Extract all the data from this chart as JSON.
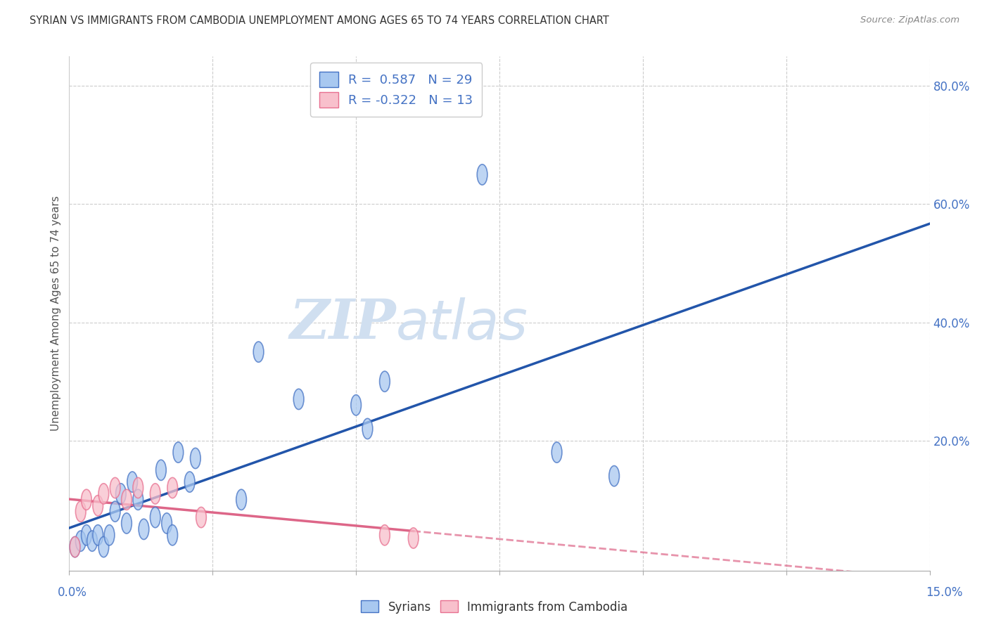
{
  "title": "SYRIAN VS IMMIGRANTS FROM CAMBODIA UNEMPLOYMENT AMONG AGES 65 TO 74 YEARS CORRELATION CHART",
  "source": "Source: ZipAtlas.com",
  "ylabel": "Unemployment Among Ages 65 to 74 years",
  "ylabel_right_ticks": [
    "20.0%",
    "40.0%",
    "60.0%",
    "80.0%"
  ],
  "ylabel_right_vals": [
    0.2,
    0.4,
    0.6,
    0.8
  ],
  "legend_syrian_R": "0.587",
  "legend_syrian_N": "29",
  "legend_cambodia_R": "-0.322",
  "legend_cambodia_N": "13",
  "syrian_color": "#A8C8F0",
  "syrian_edge_color": "#4472C4",
  "cambodia_color": "#F8C0CC",
  "cambodia_edge_color": "#E87090",
  "syrian_line_color": "#2255AA",
  "cambodia_line_color": "#DD6688",
  "watermark_color": "#D0DFF0",
  "xlim": [
    0.0,
    0.15
  ],
  "ylim": [
    -0.02,
    0.85
  ],
  "xtick_vals": [
    0.0,
    0.025,
    0.05,
    0.075,
    0.1,
    0.125,
    0.15
  ],
  "syrian_points_x": [
    0.001,
    0.002,
    0.003,
    0.004,
    0.005,
    0.006,
    0.007,
    0.008,
    0.009,
    0.01,
    0.011,
    0.012,
    0.013,
    0.015,
    0.016,
    0.017,
    0.018,
    0.019,
    0.021,
    0.022,
    0.03,
    0.033,
    0.04,
    0.05,
    0.052,
    0.055,
    0.072,
    0.085,
    0.095
  ],
  "syrian_points_y": [
    0.02,
    0.03,
    0.04,
    0.03,
    0.04,
    0.02,
    0.04,
    0.08,
    0.11,
    0.06,
    0.13,
    0.1,
    0.05,
    0.07,
    0.15,
    0.06,
    0.04,
    0.18,
    0.13,
    0.17,
    0.1,
    0.35,
    0.27,
    0.26,
    0.22,
    0.3,
    0.65,
    0.18,
    0.14
  ],
  "cambodia_points_x": [
    0.001,
    0.002,
    0.003,
    0.005,
    0.006,
    0.008,
    0.01,
    0.012,
    0.015,
    0.018,
    0.023,
    0.055,
    0.06
  ],
  "cambodia_points_y": [
    0.02,
    0.08,
    0.1,
    0.09,
    0.11,
    0.12,
    0.1,
    0.12,
    0.11,
    0.12,
    0.07,
    0.04,
    0.035
  ],
  "background_color": "#FFFFFF",
  "grid_color": "#CCCCCC"
}
